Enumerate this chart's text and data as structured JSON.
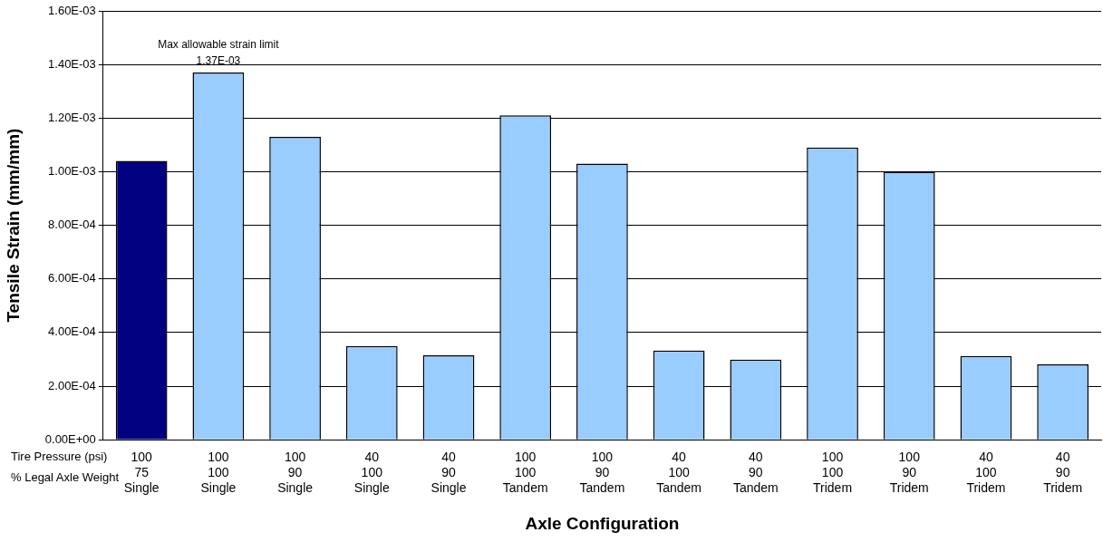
{
  "chart_data": {
    "type": "bar",
    "xlabel": "Axle Configuration",
    "ylabel": "Tensile Strain (mm/mm)",
    "categories": [
      "100\n75\nSingle",
      "100\n100\nSingle",
      "100\n90\nSingle",
      "40\n100\nSingle",
      "40\n90\nSingle",
      "100\n100\nTandem",
      "100\n90\nTandem",
      "40\n100\nTandem",
      "40\n90\nTandem",
      "100\n100\nTridem",
      "100\n90\nTridem",
      "40\n100\nTridem",
      "40\n90\nTridem"
    ],
    "values": [
      0.00104,
      0.00137,
      0.00113,
      0.00035,
      0.000315,
      0.00121,
      0.00103,
      0.000333,
      0.000299,
      0.00109,
      0.001,
      0.000313,
      0.000281
    ],
    "colors": [
      "#000080",
      "#99ccff",
      "#99ccff",
      "#99ccff",
      "#99ccff",
      "#99ccff",
      "#99ccff",
      "#99ccff",
      "#99ccff",
      "#99ccff",
      "#99ccff",
      "#99ccff",
      "#99ccff"
    ],
    "ylim": [
      0,
      0.0016
    ],
    "yticks": [
      {
        "value": 0,
        "label": "0.00E+00"
      },
      {
        "value": 0.0002,
        "label": "2.00E-04"
      },
      {
        "value": 0.0004,
        "label": "4.00E-04"
      },
      {
        "value": 0.0006,
        "label": "6.00E-04"
      },
      {
        "value": 0.0008,
        "label": "8.00E-04"
      },
      {
        "value": 0.001,
        "label": "1.00E-03"
      },
      {
        "value": 0.0012,
        "label": "1.20E-03"
      },
      {
        "value": 0.0014,
        "label": "1.40E-03"
      },
      {
        "value": 0.0016,
        "label": "1.60E-03"
      }
    ],
    "grid": "y",
    "legend": false,
    "annotations": [
      "Tire Pressure (psi)",
      "% Legal Axle Weight",
      {
        "text": "Max allowable strain limit\n1.37E-03",
        "x": "100\n100\nSingle",
        "y": 0.00137
      }
    ]
  }
}
